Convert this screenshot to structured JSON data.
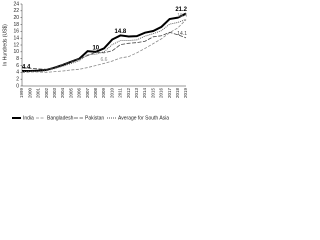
{
  "chart_data": {
    "type": "line",
    "y_label": "In Hundreds (US$)",
    "categories": [
      "1999",
      "2000",
      "2001",
      "2002",
      "2003",
      "2004",
      "2005",
      "2006",
      "2007",
      "2008",
      "2009",
      "2010",
      "2011",
      "2012",
      "2013",
      "2014",
      "2015",
      "2016",
      "2017",
      "2018",
      "2019"
    ],
    "series": [
      {
        "name": "India",
        "color": "#000000",
        "width": 2,
        "dash": "none",
        "values": [
          4.4,
          4.4,
          4.5,
          4.7,
          5.4,
          6.2,
          7.1,
          8.0,
          10.2,
          10.0,
          11.0,
          13.6,
          14.8,
          14.5,
          14.6,
          15.6,
          16.1,
          17.3,
          19.6,
          20.0,
          21.2
        ],
        "value_labels": [
          "4.4",
          null,
          null,
          null,
          null,
          null,
          null,
          null,
          null,
          "10",
          null,
          null,
          "14.8",
          null,
          null,
          null,
          null,
          null,
          null,
          null,
          "21.2"
        ]
      },
      {
        "name": "Bangladesh",
        "color": "#8a8a8a",
        "width": 0.8,
        "dash": "3 1.5",
        "values": [
          3.9,
          4.1,
          4.1,
          4.0,
          4.2,
          4.4,
          4.7,
          4.9,
          5.4,
          6.0,
          6.6,
          7.3,
          8.2,
          8.6,
          9.7,
          11.0,
          12.4,
          13.8,
          15.6,
          17.0,
          19.4
        ],
        "value_labels": [
          null,
          null,
          null,
          null,
          null,
          null,
          null,
          null,
          null,
          null,
          "6.6",
          null,
          null,
          null,
          null,
          null,
          null,
          null,
          null,
          null,
          "19.4"
        ]
      },
      {
        "name": "Pakistan",
        "color": "#444444",
        "width": 0.8,
        "dash": "4 1.5",
        "values": [
          5.3,
          5.2,
          5.0,
          4.9,
          5.4,
          6.3,
          7.1,
          8.0,
          8.9,
          9.9,
          9.7,
          10.3,
          12.1,
          12.5,
          12.7,
          13.1,
          14.4,
          14.7,
          15.7,
          15.0,
          14.1
        ],
        "value_labels": [
          null,
          null,
          null,
          null,
          null,
          null,
          null,
          null,
          null,
          null,
          null,
          null,
          null,
          null,
          null,
          null,
          null,
          null,
          null,
          null,
          "14.1"
        ]
      },
      {
        "name": "Average for South Asia",
        "color": "#555555",
        "width": 0.9,
        "dash": "1 1",
        "values": [
          4.2,
          4.3,
          4.3,
          4.5,
          5.1,
          5.8,
          6.6,
          7.4,
          9.2,
          9.3,
          10.0,
          12.1,
          13.3,
          13.3,
          13.5,
          14.6,
          15.3,
          16.2,
          18.1,
          18.6,
          19.5
        ]
      }
    ],
    "ylim": [
      0,
      24
    ],
    "yticks": [
      0,
      2,
      4,
      6,
      8,
      10,
      12,
      14,
      16,
      18,
      20,
      22,
      24
    ]
  }
}
